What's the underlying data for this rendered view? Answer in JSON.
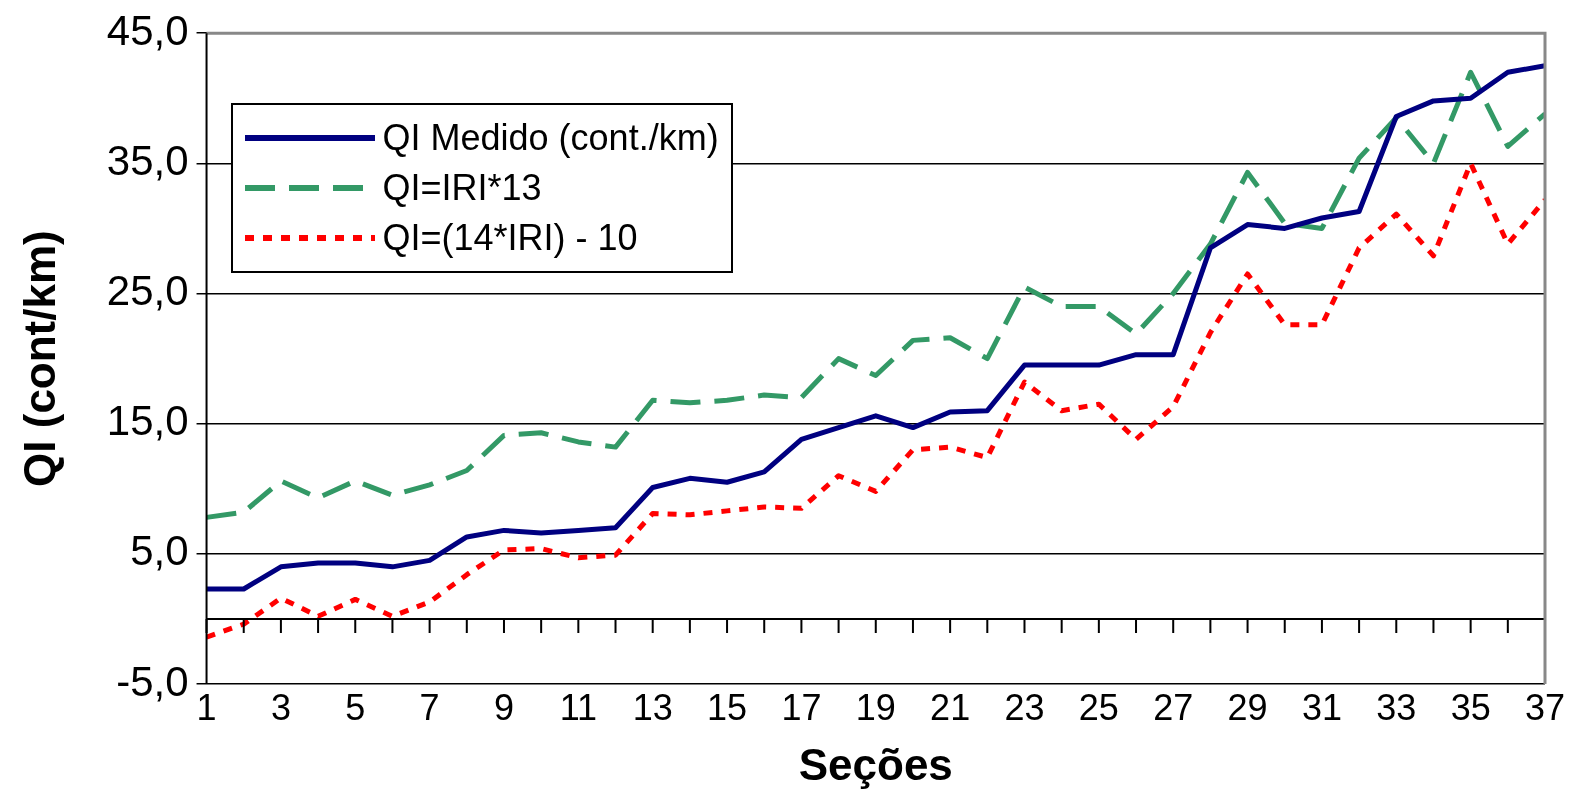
{
  "chart_data": {
    "type": "line",
    "xlabel": "Seções",
    "ylabel": "QI (cont/km)",
    "x": [
      1,
      2,
      3,
      4,
      5,
      6,
      7,
      8,
      9,
      10,
      11,
      12,
      13,
      14,
      15,
      16,
      17,
      18,
      19,
      20,
      21,
      22,
      23,
      24,
      25,
      26,
      27,
      28,
      29,
      30,
      31,
      32,
      33,
      34,
      35,
      36,
      37
    ],
    "xlim": [
      1,
      37
    ],
    "xticks": [
      1,
      3,
      5,
      7,
      9,
      11,
      13,
      15,
      17,
      19,
      21,
      23,
      25,
      27,
      29,
      31,
      33,
      35,
      37
    ],
    "series": [
      {
        "name": "QI Medido (cont./km)",
        "color": "#000080",
        "line_style": "solid",
        "values": [
          2.3,
          2.3,
          4.0,
          4.3,
          4.3,
          4.0,
          4.5,
          6.3,
          6.8,
          6.6,
          6.8,
          7.0,
          10.1,
          10.8,
          10.5,
          11.3,
          13.8,
          14.7,
          15.6,
          14.7,
          15.9,
          16.0,
          19.5,
          19.5,
          19.5,
          20.3,
          20.3,
          28.5,
          30.3,
          30.0,
          30.8,
          31.3,
          38.6,
          39.8,
          40.0,
          42.0,
          42.5
        ]
      },
      {
        "name": "QI=IRI*13",
        "color": "#339966",
        "line_style": "dashed",
        "values": [
          7.8,
          8.2,
          10.6,
          9.3,
          10.6,
          9.5,
          10.3,
          11.4,
          14.1,
          14.3,
          13.6,
          13.2,
          16.8,
          16.6,
          16.8,
          17.2,
          17.0,
          20.0,
          18.7,
          21.4,
          21.6,
          20.0,
          25.5,
          24.0,
          24.0,
          21.9,
          25.0,
          28.8,
          34.3,
          30.4,
          30.0,
          35.4,
          38.5,
          35.0,
          42.0,
          36.3,
          38.8
        ]
      },
      {
        "name": "QI=(14*IRI) - 10",
        "color": "#ff0000",
        "line_style": "dotted",
        "values": [
          -1.4,
          -0.4,
          1.6,
          0.2,
          1.5,
          0.2,
          1.3,
          3.4,
          5.3,
          5.4,
          4.7,
          4.9,
          8.1,
          8.0,
          8.3,
          8.6,
          8.5,
          11.0,
          9.8,
          13.0,
          13.2,
          12.4,
          18.2,
          16.0,
          16.5,
          13.8,
          16.3,
          22.0,
          26.5,
          22.6,
          22.6,
          28.5,
          31.1,
          27.9,
          35.0,
          28.8,
          32.2
        ]
      }
    ],
    "ylim": [
      -5,
      45
    ],
    "yticks": [
      {
        "value": -5,
        "label": "-5,0"
      },
      {
        "value": 5,
        "label": "5,0"
      },
      {
        "value": 15,
        "label": "15,0"
      },
      {
        "value": 25,
        "label": "25,0"
      },
      {
        "value": 35,
        "label": "35,0"
      },
      {
        "value": 45,
        "label": "45,0"
      }
    ],
    "ref_lines": [
      {
        "axis": "y",
        "value": 0,
        "color": "#000000"
      }
    ],
    "grid": "y",
    "legend": "top left",
    "marker": "none"
  }
}
